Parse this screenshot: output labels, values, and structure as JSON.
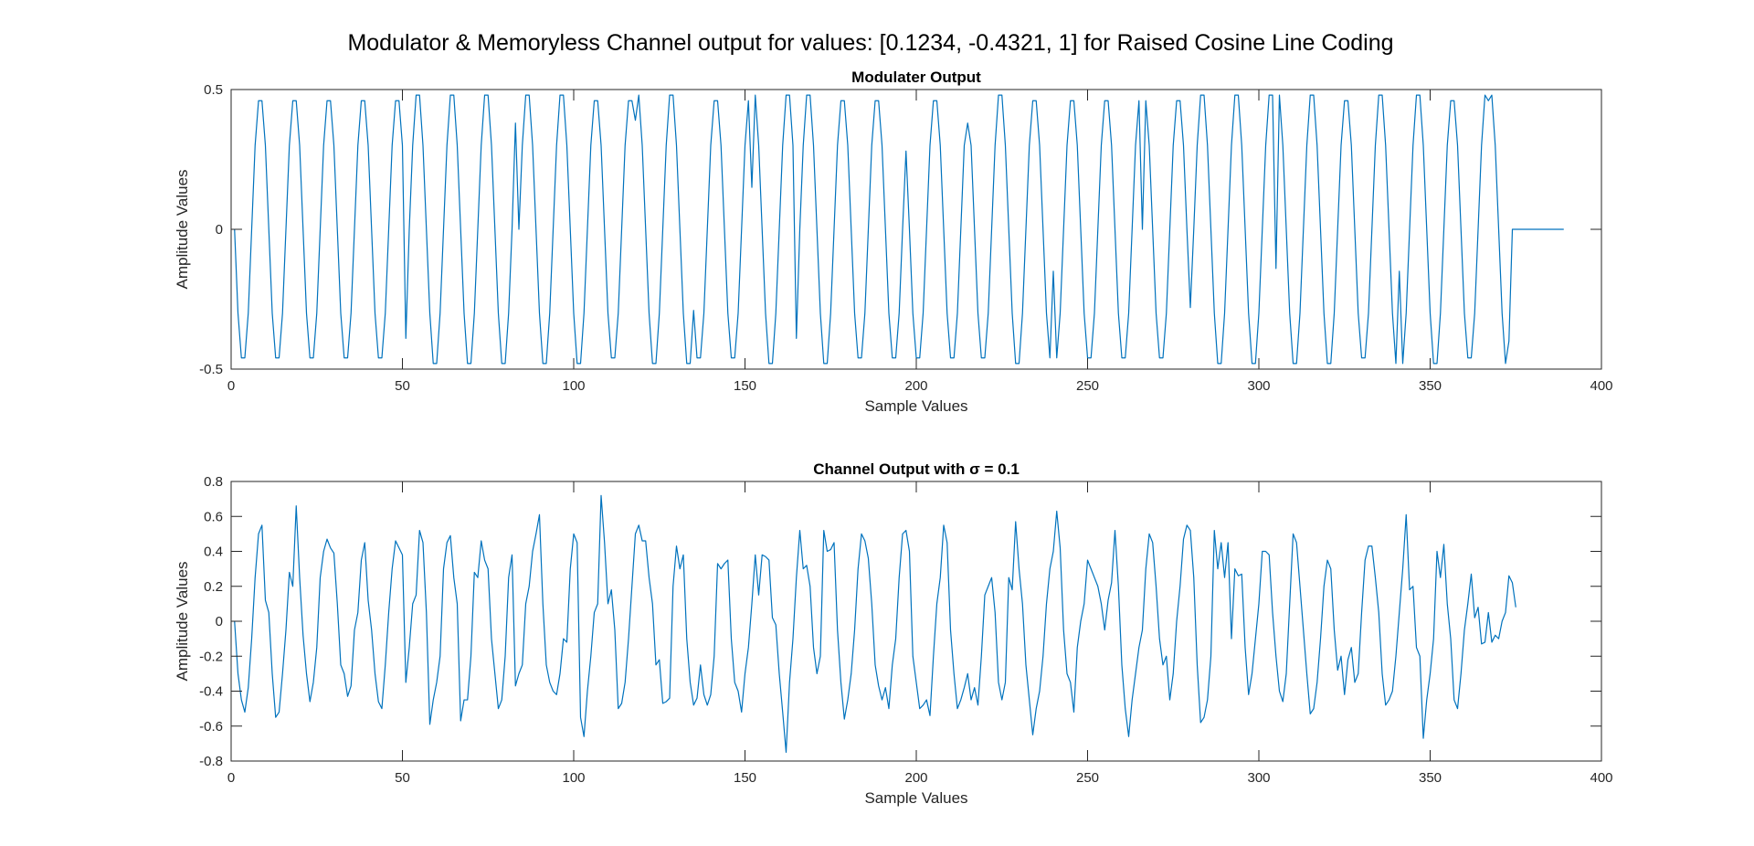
{
  "figure": {
    "suptitle": "Modulator & Memoryless Channel output for values: [0.1234, -0.4321, 1] for Raised Cosine Line Coding"
  },
  "chart_data": [
    {
      "type": "line",
      "title": "Modulater Output",
      "xlabel": "Sample Values",
      "ylabel": "Amplitude Values",
      "xlim": [
        0,
        400
      ],
      "ylim": [
        -0.5,
        0.5
      ],
      "xticks": [
        0,
        50,
        100,
        150,
        200,
        250,
        300,
        350,
        400
      ],
      "yticks": [
        -0.5,
        0,
        0.5
      ],
      "grid": false,
      "color": "#0072BD",
      "series": [
        {
          "values": [
            0.0,
            -0.3,
            -0.46,
            -0.46,
            -0.3,
            0.0,
            0.3,
            0.46,
            0.46,
            0.3,
            0.0,
            -0.3,
            -0.46,
            -0.46,
            -0.3,
            0.0,
            0.3,
            0.46,
            0.46,
            0.3,
            0.0,
            -0.3,
            -0.46,
            -0.46,
            -0.3,
            0.0,
            0.3,
            0.46,
            0.46,
            0.3,
            0.0,
            -0.3,
            -0.46,
            -0.46,
            -0.3,
            0.0,
            0.3,
            0.46,
            0.46,
            0.3,
            0.0,
            -0.3,
            -0.46,
            -0.46,
            -0.3,
            0.0,
            0.3,
            0.46,
            0.46,
            0.3,
            -0.39,
            0.0,
            0.3,
            0.48,
            0.48,
            0.3,
            0.0,
            -0.3,
            -0.48,
            -0.48,
            -0.3,
            0.0,
            0.3,
            0.48,
            0.48,
            0.3,
            0.0,
            -0.3,
            -0.48,
            -0.48,
            -0.3,
            0.0,
            0.3,
            0.48,
            0.48,
            0.3,
            0.0,
            -0.3,
            -0.48,
            -0.48,
            -0.3,
            0.0,
            0.38,
            0.0,
            0.3,
            0.48,
            0.48,
            0.3,
            0.0,
            -0.3,
            -0.48,
            -0.48,
            -0.3,
            0.0,
            0.3,
            0.48,
            0.48,
            0.3,
            0.0,
            -0.3,
            -0.48,
            -0.48,
            -0.3,
            0.0,
            0.3,
            0.46,
            0.46,
            0.3,
            0.0,
            -0.3,
            -0.46,
            -0.46,
            -0.3,
            0.0,
            0.3,
            0.46,
            0.46,
            0.39,
            0.48,
            0.3,
            0.0,
            -0.3,
            -0.48,
            -0.48,
            -0.3,
            0.0,
            0.3,
            0.48,
            0.48,
            0.3,
            0.0,
            -0.3,
            -0.48,
            -0.48,
            -0.29,
            -0.46,
            -0.46,
            -0.3,
            0.0,
            0.3,
            0.46,
            0.46,
            0.3,
            0.0,
            -0.3,
            -0.46,
            -0.46,
            -0.3,
            0.0,
            0.3,
            0.46,
            0.15,
            0.48,
            0.3,
            0.0,
            -0.3,
            -0.48,
            -0.48,
            -0.3,
            0.0,
            0.3,
            0.48,
            0.48,
            0.3,
            -0.39,
            0.0,
            0.3,
            0.48,
            0.48,
            0.3,
            0.0,
            -0.3,
            -0.48,
            -0.48,
            -0.3,
            0.0,
            0.3,
            0.46,
            0.46,
            0.3,
            0.0,
            -0.3,
            -0.46,
            -0.46,
            -0.3,
            0.0,
            0.3,
            0.46,
            0.46,
            0.3,
            0.0,
            -0.3,
            -0.46,
            -0.46,
            -0.3,
            0.0,
            0.28,
            0.0,
            -0.3,
            -0.46,
            -0.46,
            -0.3,
            0.0,
            0.3,
            0.46,
            0.46,
            0.3,
            0.0,
            -0.3,
            -0.46,
            -0.46,
            -0.3,
            0.0,
            0.3,
            0.38,
            0.3,
            0.0,
            -0.3,
            -0.46,
            -0.46,
            -0.3,
            0.0,
            0.3,
            0.48,
            0.48,
            0.3,
            0.0,
            -0.3,
            -0.48,
            -0.48,
            -0.3,
            0.0,
            0.3,
            0.46,
            0.46,
            0.3,
            0.0,
            -0.3,
            -0.46,
            -0.15,
            -0.46,
            -0.3,
            0.0,
            0.3,
            0.46,
            0.46,
            0.3,
            0.0,
            -0.3,
            -0.46,
            -0.46,
            -0.3,
            0.0,
            0.3,
            0.46,
            0.46,
            0.3,
            0.0,
            -0.3,
            -0.46,
            -0.46,
            -0.3,
            0.0,
            0.3,
            0.46,
            0.0,
            0.46,
            0.3,
            0.0,
            -0.3,
            -0.46,
            -0.46,
            -0.3,
            0.0,
            0.3,
            0.46,
            0.46,
            0.3,
            0.0,
            -0.28,
            0.0,
            0.3,
            0.48,
            0.48,
            0.3,
            0.0,
            -0.3,
            -0.48,
            -0.48,
            -0.3,
            0.0,
            0.3,
            0.48,
            0.48,
            0.3,
            0.0,
            -0.3,
            -0.48,
            -0.48,
            -0.3,
            0.0,
            0.3,
            0.48,
            0.48,
            -0.14,
            0.48,
            0.3,
            0.0,
            -0.3,
            -0.48,
            -0.48,
            -0.3,
            0.0,
            0.3,
            0.48,
            0.48,
            0.3,
            0.0,
            -0.3,
            -0.48,
            -0.48,
            -0.3,
            0.0,
            0.3,
            0.46,
            0.46,
            0.3,
            0.0,
            -0.3,
            -0.46,
            -0.46,
            -0.3,
            0.0,
            0.3,
            0.48,
            0.48,
            0.3,
            0.0,
            -0.3,
            -0.48,
            -0.15,
            -0.48,
            -0.3,
            0.0,
            0.3,
            0.48,
            0.48,
            0.3,
            0.0,
            -0.3,
            -0.48,
            -0.48,
            -0.3,
            0.0,
            0.3,
            0.46,
            0.46,
            0.3,
            0.0,
            -0.3,
            -0.46,
            -0.46,
            -0.3,
            0.0,
            0.3,
            0.48,
            0.46,
            0.48,
            0.3,
            0.0,
            -0.3,
            -0.48,
            -0.4,
            0.0,
            0.0,
            0.0,
            0.0,
            0.0,
            0.0,
            0.0,
            0.0,
            0.0,
            0.0,
            0.0,
            0.0,
            0.0,
            0.0,
            0.0,
            0.0
          ]
        }
      ]
    },
    {
      "type": "line",
      "title": "Channel Output with σ = 0.1",
      "xlabel": "Sample Values",
      "ylabel": "Amplitude Values",
      "xlim": [
        0,
        400
      ],
      "ylim": [
        -0.8,
        0.8
      ],
      "xticks": [
        0,
        50,
        100,
        150,
        200,
        250,
        300,
        350,
        400
      ],
      "yticks": [
        -0.8,
        -0.6,
        -0.4,
        -0.2,
        0,
        0.2,
        0.4,
        0.6,
        0.8
      ],
      "grid": false,
      "color": "#0072BD",
      "series": [
        {
          "values": [
            0.0,
            -0.3,
            -0.45,
            -0.52,
            -0.38,
            -0.1,
            0.25,
            0.5,
            0.55,
            0.12,
            0.05,
            -0.3,
            -0.55,
            -0.52,
            -0.3,
            -0.05,
            0.28,
            0.2,
            0.66,
            0.25,
            -0.08,
            -0.3,
            -0.46,
            -0.35,
            -0.15,
            0.25,
            0.4,
            0.47,
            0.42,
            0.39,
            0.1,
            -0.25,
            -0.3,
            -0.43,
            -0.37,
            -0.05,
            0.05,
            0.35,
            0.45,
            0.12,
            -0.05,
            -0.3,
            -0.46,
            -0.5,
            -0.25,
            0.05,
            0.3,
            0.46,
            0.42,
            0.38,
            -0.35,
            -0.15,
            0.1,
            0.15,
            0.52,
            0.45,
            0.05,
            -0.59,
            -0.45,
            -0.35,
            -0.2,
            0.3,
            0.45,
            0.49,
            0.25,
            0.1,
            -0.57,
            -0.45,
            -0.45,
            -0.2,
            0.28,
            0.25,
            0.46,
            0.35,
            0.3,
            -0.1,
            -0.3,
            -0.5,
            -0.45,
            -0.2,
            0.25,
            0.38,
            -0.37,
            -0.3,
            -0.25,
            0.1,
            0.2,
            0.4,
            0.5,
            0.61,
            0.1,
            -0.25,
            -0.35,
            -0.4,
            -0.42,
            -0.3,
            -0.1,
            -0.12,
            0.3,
            0.5,
            0.45,
            -0.55,
            -0.66,
            -0.4,
            -0.2,
            0.05,
            0.1,
            0.72,
            0.45,
            0.1,
            0.18,
            -0.05,
            -0.5,
            -0.47,
            -0.35,
            -0.1,
            0.2,
            0.5,
            0.55,
            0.46,
            0.46,
            0.25,
            0.1,
            -0.25,
            -0.22,
            -0.47,
            -0.46,
            -0.44,
            0.2,
            0.43,
            0.3,
            0.38,
            -0.1,
            -0.35,
            -0.48,
            -0.44,
            -0.25,
            -0.42,
            -0.48,
            -0.42,
            -0.2,
            0.33,
            0.3,
            0.33,
            0.35,
            -0.1,
            -0.35,
            -0.4,
            -0.52,
            -0.3,
            -0.15,
            0.1,
            0.38,
            0.15,
            0.38,
            0.37,
            0.35,
            0.02,
            -0.02,
            -0.3,
            -0.52,
            -0.75,
            -0.35,
            -0.1,
            0.25,
            0.52,
            0.3,
            0.32,
            0.2,
            -0.15,
            -0.3,
            -0.2,
            0.52,
            0.4,
            0.41,
            0.45,
            -0.05,
            -0.35,
            -0.56,
            -0.45,
            -0.3,
            -0.05,
            0.3,
            0.5,
            0.46,
            0.36,
            0.1,
            -0.25,
            -0.37,
            -0.45,
            -0.38,
            -0.5,
            -0.25,
            -0.1,
            0.25,
            0.5,
            0.52,
            0.4,
            -0.2,
            -0.35,
            -0.5,
            -0.48,
            -0.45,
            -0.54,
            -0.2,
            0.1,
            0.25,
            0.55,
            0.45,
            -0.05,
            -0.3,
            -0.5,
            -0.45,
            -0.38,
            -0.3,
            -0.45,
            -0.38,
            -0.48,
            -0.2,
            0.15,
            0.2,
            0.25,
            0.05,
            -0.35,
            -0.45,
            -0.35,
            0.25,
            0.18,
            0.57,
            0.3,
            0.1,
            -0.25,
            -0.45,
            -0.65,
            -0.5,
            -0.4,
            -0.2,
            0.1,
            0.3,
            0.4,
            0.63,
            0.42,
            -0.05,
            -0.3,
            -0.35,
            -0.52,
            -0.15,
            0.0,
            0.1,
            0.35,
            0.3,
            0.25,
            0.2,
            0.1,
            -0.05,
            0.12,
            0.22,
            0.52,
            0.2,
            -0.25,
            -0.5,
            -0.66,
            -0.45,
            -0.3,
            -0.15,
            -0.05,
            0.3,
            0.5,
            0.45,
            0.2,
            -0.1,
            -0.25,
            -0.2,
            -0.45,
            -0.3,
            0.0,
            0.2,
            0.47,
            0.55,
            0.52,
            0.25,
            -0.25,
            -0.58,
            -0.55,
            -0.45,
            -0.2,
            0.52,
            0.3,
            0.45,
            0.25,
            0.45,
            -0.1,
            0.3,
            0.26,
            0.27,
            -0.15,
            -0.42,
            -0.3,
            -0.1,
            0.1,
            0.4,
            0.4,
            0.38,
            0.05,
            -0.2,
            -0.4,
            -0.46,
            -0.3,
            0.1,
            0.5,
            0.45,
            0.2,
            -0.05,
            -0.3,
            -0.53,
            -0.5,
            -0.35,
            -0.1,
            0.2,
            0.35,
            0.3,
            -0.05,
            -0.28,
            -0.2,
            -0.42,
            -0.22,
            -0.15,
            -0.35,
            -0.3,
            0.05,
            0.35,
            0.43,
            0.43,
            0.25,
            0.05,
            -0.3,
            -0.48,
            -0.45,
            -0.4,
            -0.2,
            0.05,
            0.3,
            0.61,
            0.18,
            0.2,
            -0.15,
            -0.2,
            -0.67,
            -0.45,
            -0.3,
            -0.1,
            0.4,
            0.25,
            0.44,
            0.1,
            -0.1,
            -0.45,
            -0.5,
            -0.3,
            -0.05,
            0.1,
            0.27,
            0.02,
            0.08,
            -0.13,
            -0.12,
            0.05,
            -0.12,
            -0.08,
            -0.1,
            0.0,
            0.05,
            0.26,
            0.22,
            0.08
          ]
        }
      ]
    }
  ]
}
